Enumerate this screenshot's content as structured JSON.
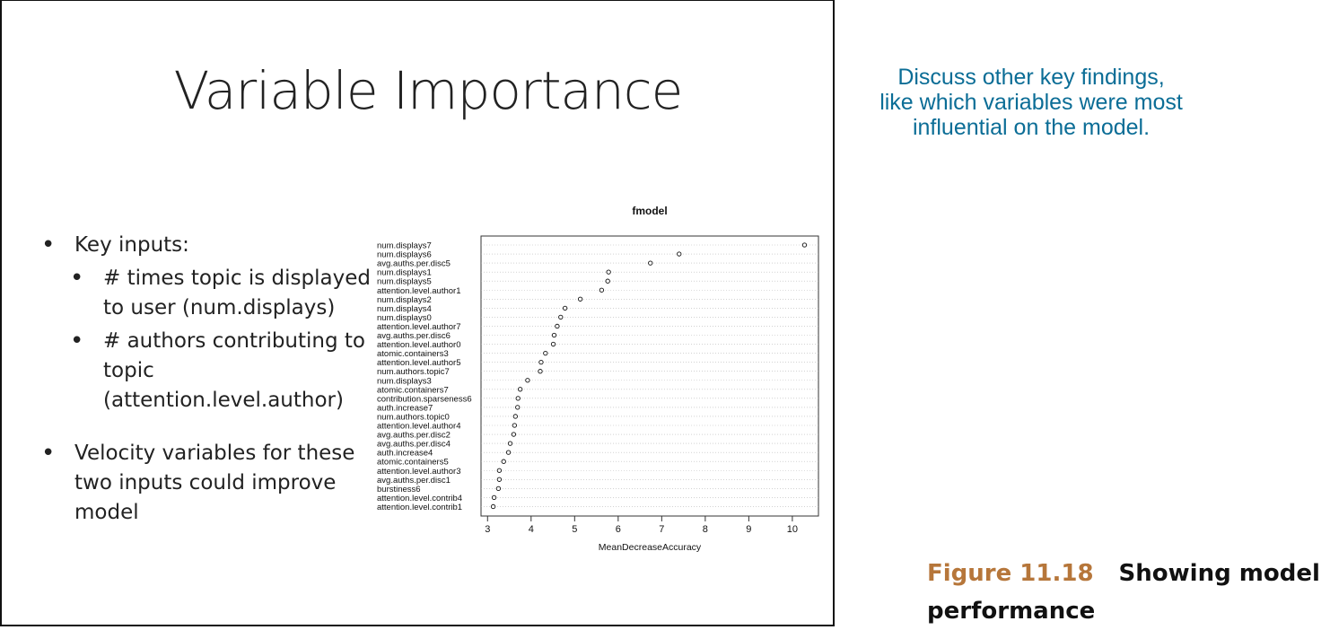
{
  "slide": {
    "title": "Variable Importance",
    "bullets": [
      {
        "text": "Key inputs:",
        "sub": [
          "# times topic is displayed to user (num.displays)",
          "# authors contributing to topic (attention.level.author)"
        ]
      },
      {
        "text": "Velocity variables for these two inputs could improve model",
        "sub": []
      }
    ]
  },
  "callout": {
    "lines": [
      "Discuss other key findings,",
      "like which variables were most",
      "influential on the model."
    ],
    "color": "#0b6d96"
  },
  "caption": {
    "number": "Figure 11.18",
    "text": "Showing model performance",
    "number_color": "#b6763a"
  },
  "chart_data": {
    "type": "scatter",
    "title": "fmodel",
    "xlabel": "MeanDecreaseAccuracy",
    "ylabel": "",
    "xlim": [
      2.85,
      10.6
    ],
    "xticks": [
      3,
      4,
      5,
      6,
      7,
      8,
      9,
      10
    ],
    "grid": false,
    "categories": [
      "num.displays7",
      "num.displays6",
      "avg.auths.per.disc5",
      "num.displays1",
      "num.displays5",
      "attention.level.author1",
      "num.displays2",
      "num.displays4",
      "num.displays0",
      "attention.level.author7",
      "avg.auths.per.disc6",
      "attention.level.author0",
      "atomic.containers3",
      "attention.level.author5",
      "num.authors.topic7",
      "num.displays3",
      "atomic.containers7",
      "contribution.sparseness6",
      "auth.increase7",
      "num.authors.topic0",
      "attention.level.author4",
      "avg.auths.per.disc2",
      "avg.auths.per.disc4",
      "auth.increase4",
      "atomic.containers5",
      "attention.level.author3",
      "avg.auths.per.disc1",
      "burstiness6",
      "attention.level.contrib4",
      "attention.level.contrib1"
    ],
    "values": [
      10.28,
      7.4,
      6.74,
      5.78,
      5.76,
      5.62,
      5.13,
      4.78,
      4.68,
      4.6,
      4.53,
      4.51,
      4.33,
      4.23,
      4.21,
      3.92,
      3.75,
      3.7,
      3.69,
      3.64,
      3.62,
      3.6,
      3.52,
      3.48,
      3.37,
      3.27,
      3.27,
      3.25,
      3.15,
      3.13
    ]
  }
}
